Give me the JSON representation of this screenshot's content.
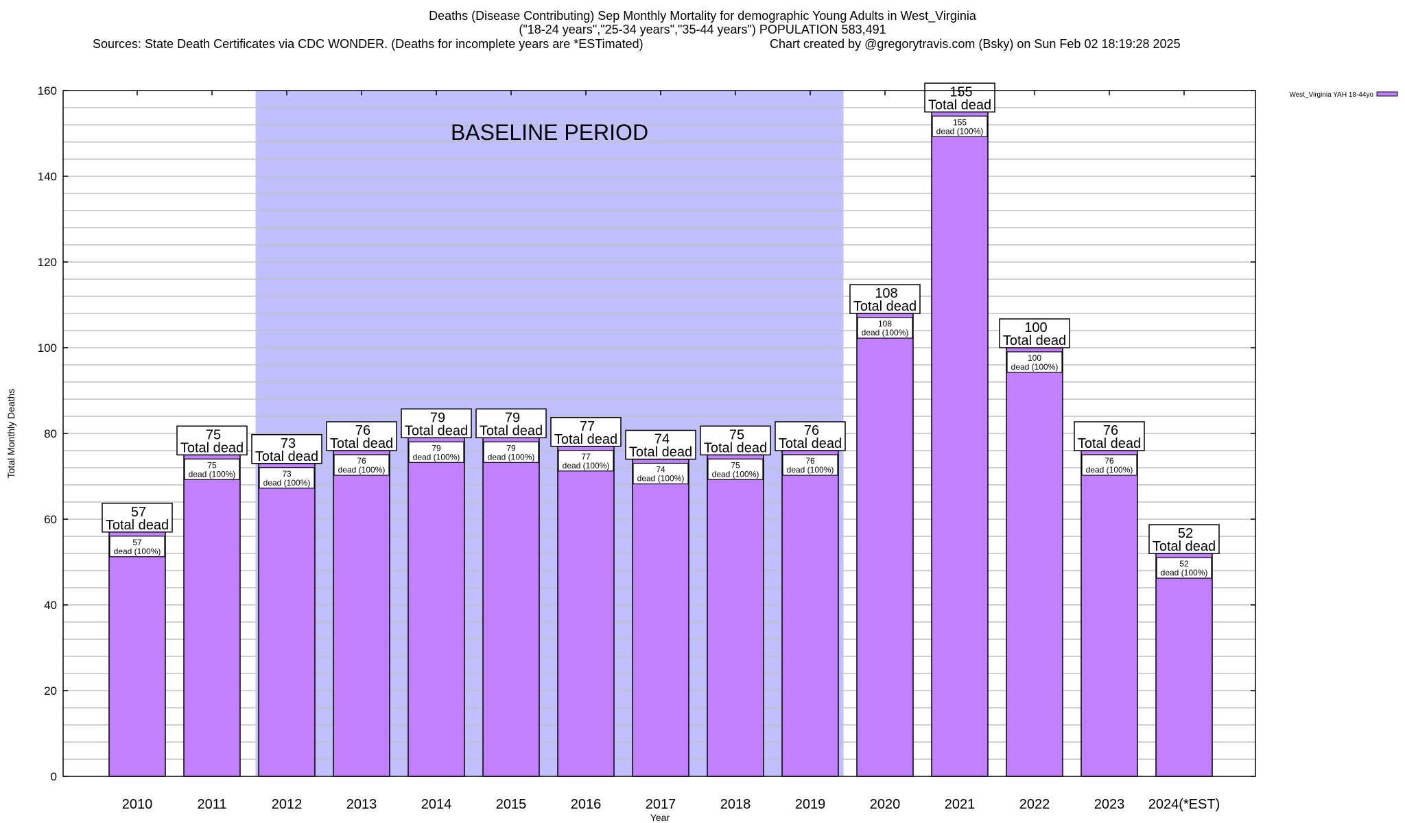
{
  "title": {
    "line1": "Deaths (Disease Contributing) Sep Monthly Mortality for demographic Young Adults in West_Virginia",
    "line2": "(\"18-24 years\",\"25-34 years\",\"35-44 years\") POPULATION 583,491",
    "sources": "Sources: State Death Certificates via CDC WONDER. (Deaths for incomplete years are *ESTimated)",
    "credit": "Chart created by @gregorytravis.com (Bsky) on Sun Feb 02 18:19:28 2025"
  },
  "colors": {
    "bar": "#c080ff",
    "baseline_shade": "#c0c0ff",
    "grid": "#c0c0c0",
    "axis": "#000000"
  },
  "chart_data": {
    "type": "bar",
    "title": "Deaths (Disease Contributing) Sep Monthly Mortality for demographic Young Adults in West_Virginia",
    "xlabel": "Year",
    "ylabel": "Total Monthly Deaths",
    "ylim": [
      0,
      160
    ],
    "yticks": [
      0,
      20,
      40,
      60,
      80,
      100,
      120,
      140,
      160
    ],
    "ytick_labels": [
      "0",
      "20",
      "40",
      "60",
      "80",
      "100",
      "120",
      "140",
      "160"
    ],
    "y_minor_step": 4,
    "grid": true,
    "categories": [
      "2010",
      "2011",
      "2012",
      "2013",
      "2014",
      "2015",
      "2016",
      "2017",
      "2018",
      "2019",
      "2020",
      "2021",
      "2022",
      "2023",
      "2024(*EST)"
    ],
    "series": [
      {
        "name": "West_Virginia YAH 18-44yo",
        "values": [
          57,
          75,
          73,
          76,
          79,
          79,
          77,
          74,
          75,
          76,
          108,
          155,
          100,
          76,
          52
        ]
      }
    ],
    "total_label_suffix": "Total dead",
    "inner_label_suffix": "dead (100%)",
    "baseline_period": {
      "label": "BASELINE PERIOD",
      "start_category": "2012",
      "end_category": "2019"
    },
    "legend": {
      "position": "top-right",
      "entries": [
        "West_Virginia YAH 18-44yo"
      ]
    }
  }
}
